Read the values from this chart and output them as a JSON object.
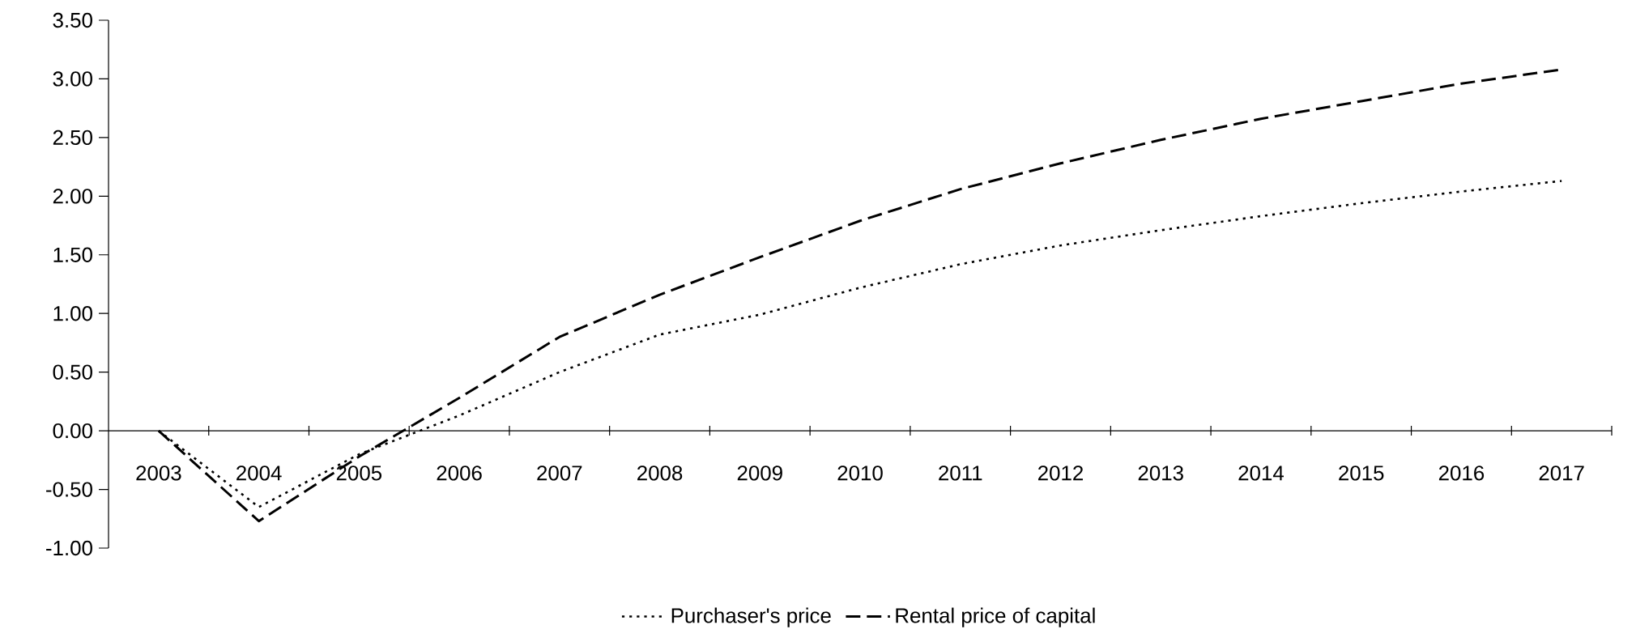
{
  "chart_data": {
    "type": "line",
    "categories": [
      "2003",
      "2004",
      "2005",
      "2006",
      "2007",
      "2008",
      "2009",
      "2010",
      "2011",
      "2012",
      "2013",
      "2014",
      "2015",
      "2016",
      "2017"
    ],
    "series": [
      {
        "name": "Purchaser's price",
        "color": "#000000",
        "line_style": "dotted",
        "values": [
          0,
          -0.65,
          -0.2,
          0.13,
          0.5,
          0.82,
          0.99,
          1.22,
          1.42,
          1.58,
          1.71,
          1.83,
          1.94,
          2.04,
          2.13
        ]
      },
      {
        "name": "Rental price of capital",
        "color": "#000000",
        "line_style": "dashed",
        "values": [
          0,
          -0.77,
          -0.22,
          0.28,
          0.8,
          1.16,
          1.48,
          1.79,
          2.06,
          2.28,
          2.48,
          2.66,
          2.81,
          2.96,
          3.08
        ]
      }
    ],
    "ylim": [
      -1.0,
      3.5
    ],
    "yticks": [
      {
        "value": -1.0,
        "label": "-1.00"
      },
      {
        "value": -0.5,
        "label": "-0.50"
      },
      {
        "value": 0,
        "label": "0.00"
      },
      {
        "value": 0.5,
        "label": "0.50"
      },
      {
        "value": 1.0,
        "label": "1.00"
      },
      {
        "value": 1.5,
        "label": "1.50"
      },
      {
        "value": 2.0,
        "label": "2.00"
      },
      {
        "value": 2.5,
        "label": "2.50"
      },
      {
        "value": 3.0,
        "label": "3.00"
      },
      {
        "value": 3.5,
        "label": "3.50"
      }
    ],
    "grid": false,
    "legend": "bottom",
    "marker": "none"
  }
}
